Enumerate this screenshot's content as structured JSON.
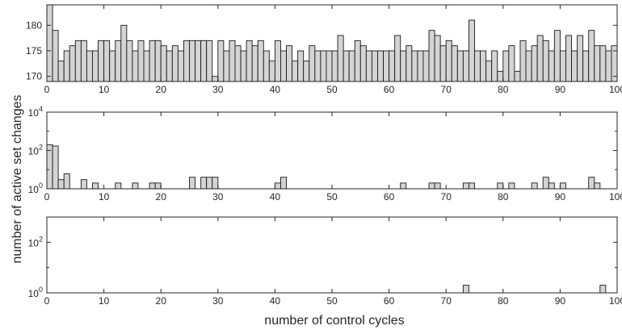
{
  "figure": {
    "xlabel": "number of control cycles",
    "ylabel": "number of active set changes"
  },
  "chart_data": [
    {
      "type": "bar",
      "xlim": [
        0,
        100
      ],
      "ylim": [
        169,
        184
      ],
      "yscale": "linear",
      "xticks": [
        0,
        10,
        20,
        30,
        40,
        50,
        60,
        70,
        80,
        90,
        100
      ],
      "yticks": [
        170,
        175,
        180
      ],
      "ytick_labels": [
        "170",
        "175",
        "180"
      ],
      "x": [
        0,
        1,
        2,
        3,
        4,
        5,
        6,
        7,
        8,
        9,
        10,
        11,
        12,
        13,
        14,
        15,
        16,
        17,
        18,
        19,
        20,
        21,
        22,
        23,
        24,
        25,
        26,
        27,
        28,
        29,
        30,
        31,
        32,
        33,
        34,
        35,
        36,
        37,
        38,
        39,
        40,
        41,
        42,
        43,
        44,
        45,
        46,
        47,
        48,
        49,
        50,
        51,
        52,
        53,
        54,
        55,
        56,
        57,
        58,
        59,
        60,
        61,
        62,
        63,
        64,
        65,
        66,
        67,
        68,
        69,
        70,
        71,
        72,
        73,
        74,
        75,
        76,
        77,
        78,
        79,
        80,
        81,
        82,
        83,
        84,
        85,
        86,
        87,
        88,
        89,
        90,
        91,
        92,
        93,
        94,
        95,
        96,
        97,
        98,
        99
      ],
      "values": [
        184,
        179,
        173,
        175,
        176,
        177,
        177,
        175,
        175,
        177,
        177,
        175,
        177,
        180,
        177,
        175,
        177,
        175,
        177,
        177,
        176,
        175,
        176,
        175,
        177,
        177,
        177,
        177,
        177,
        170,
        177,
        175,
        177,
        176,
        175,
        177,
        176,
        177,
        175,
        173,
        177,
        175,
        176,
        173,
        175,
        173,
        176,
        175,
        175,
        175,
        175,
        178,
        175,
        175,
        177,
        176,
        175,
        175,
        175,
        175,
        175,
        178,
        175,
        176,
        175,
        175,
        175,
        179,
        178,
        176,
        177,
        176,
        175,
        175,
        181,
        175,
        175,
        173,
        175,
        171,
        175,
        176,
        171,
        177,
        175,
        176,
        178,
        177,
        175,
        179,
        175,
        178,
        175,
        178,
        175,
        179,
        176,
        176,
        175,
        176
      ],
      "color": "#d4d4d4",
      "edge_color": "#1a1a1a",
      "grid": false
    },
    {
      "type": "bar",
      "xlim": [
        0,
        100
      ],
      "ylim": [
        1,
        10000
      ],
      "yscale": "log",
      "xticks": [
        0,
        10,
        20,
        30,
        40,
        50,
        60,
        70,
        80,
        90,
        100
      ],
      "yticks": [
        1,
        100,
        10000
      ],
      "ytick_labels": [
        [
          "10",
          "0"
        ],
        [
          "10",
          "2"
        ],
        [
          "10",
          "4"
        ]
      ],
      "x": [
        0,
        1,
        2,
        3,
        6,
        8,
        12,
        15,
        18,
        19,
        25,
        27,
        28,
        29,
        40,
        41,
        62,
        67,
        68,
        73,
        74,
        79,
        81,
        85,
        87,
        88,
        90,
        95,
        96
      ],
      "values": [
        200,
        170,
        3,
        6,
        3,
        2,
        2,
        2,
        2,
        2,
        4,
        4,
        4,
        4,
        2,
        4,
        2,
        2,
        2,
        2,
        2,
        2,
        2,
        2,
        4,
        2,
        2,
        4,
        2
      ],
      "color": "#d4d4d4",
      "edge_color": "#1a1a1a",
      "grid": false
    },
    {
      "type": "bar",
      "xlim": [
        0,
        100
      ],
      "ylim": [
        1,
        1000
      ],
      "yscale": "log",
      "xticks": [
        0,
        10,
        20,
        30,
        40,
        50,
        60,
        70,
        80,
        90,
        100
      ],
      "yticks": [
        1,
        100
      ],
      "ytick_labels": [
        [
          "10",
          "0"
        ],
        [
          "10",
          "2"
        ]
      ],
      "x": [
        73,
        97
      ],
      "values": [
        2,
        2
      ],
      "color": "#d4d4d4",
      "edge_color": "#1a1a1a",
      "grid": false
    }
  ]
}
